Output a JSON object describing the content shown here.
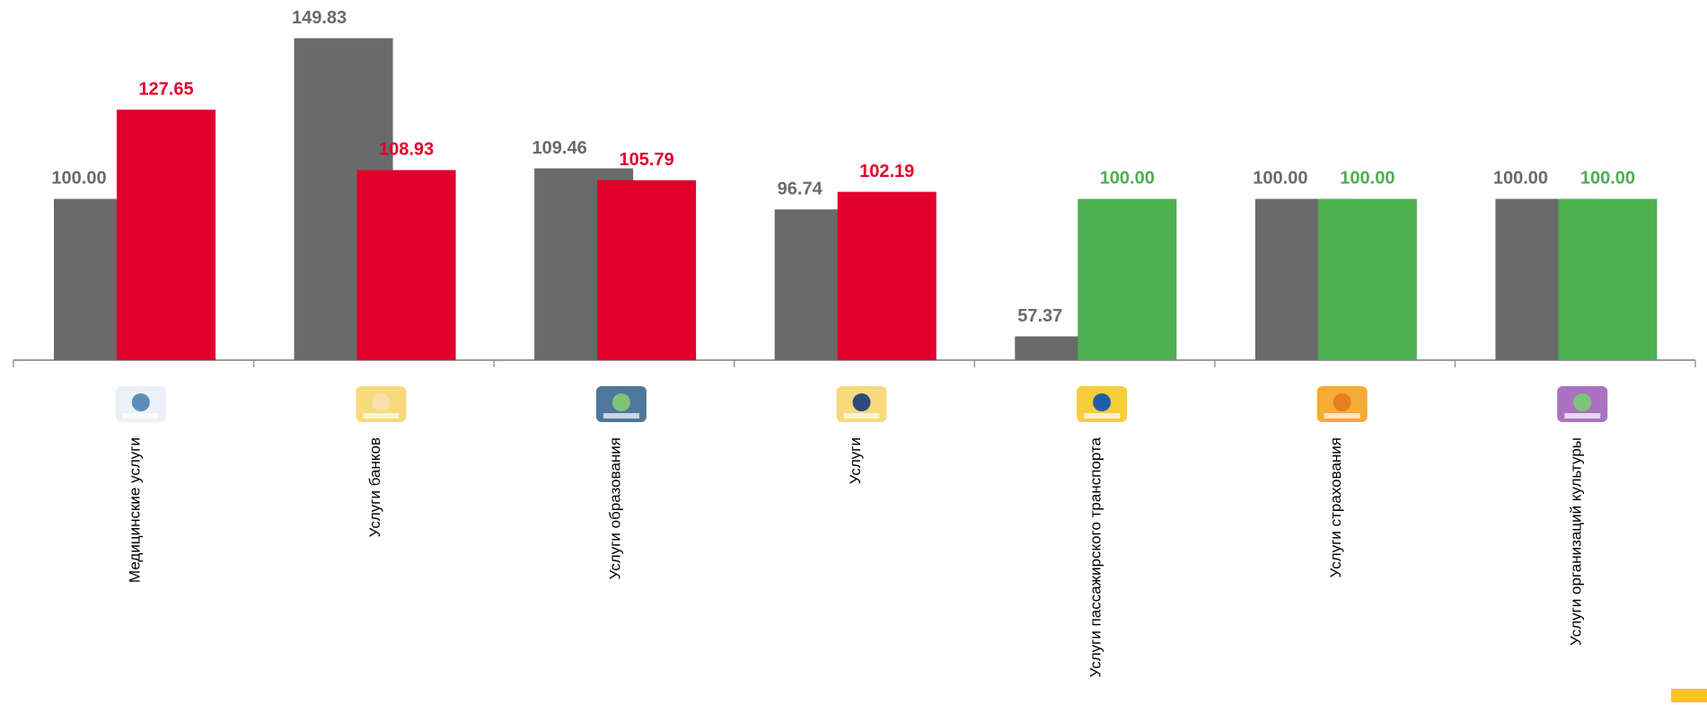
{
  "chart_data": {
    "type": "bar",
    "categories": [
      "Медицинские услуги",
      "Услуги банков",
      "Услуги образования",
      "Услуги",
      "Услуги пассажирского транспорта",
      "Услуги страхования",
      "Услуги организаций культуры"
    ],
    "series": [
      {
        "color": "#6a6a6a",
        "values": [
          100,
          149.83,
          109.46,
          96.74,
          57.37,
          100,
          100
        ],
        "value_labels": [
          "100.00",
          "149.83",
          "109.46",
          "96.74",
          "57.37",
          "100.00",
          "100.00"
        ]
      },
      {
        "colors": [
          "#e0002b",
          "#e0002b",
          "#e0002b",
          "#e0002b",
          "#4caf50",
          "#4caf50",
          "#4caf50"
        ],
        "values": [
          127.65,
          108.93,
          105.79,
          102.19,
          100,
          100,
          100
        ],
        "value_labels": [
          "127.65",
          "108.93",
          "105.79",
          "102.19",
          "100.00",
          "100.00",
          "100.00"
        ]
      }
    ],
    "ylim": [
      50,
      160
    ]
  }
}
